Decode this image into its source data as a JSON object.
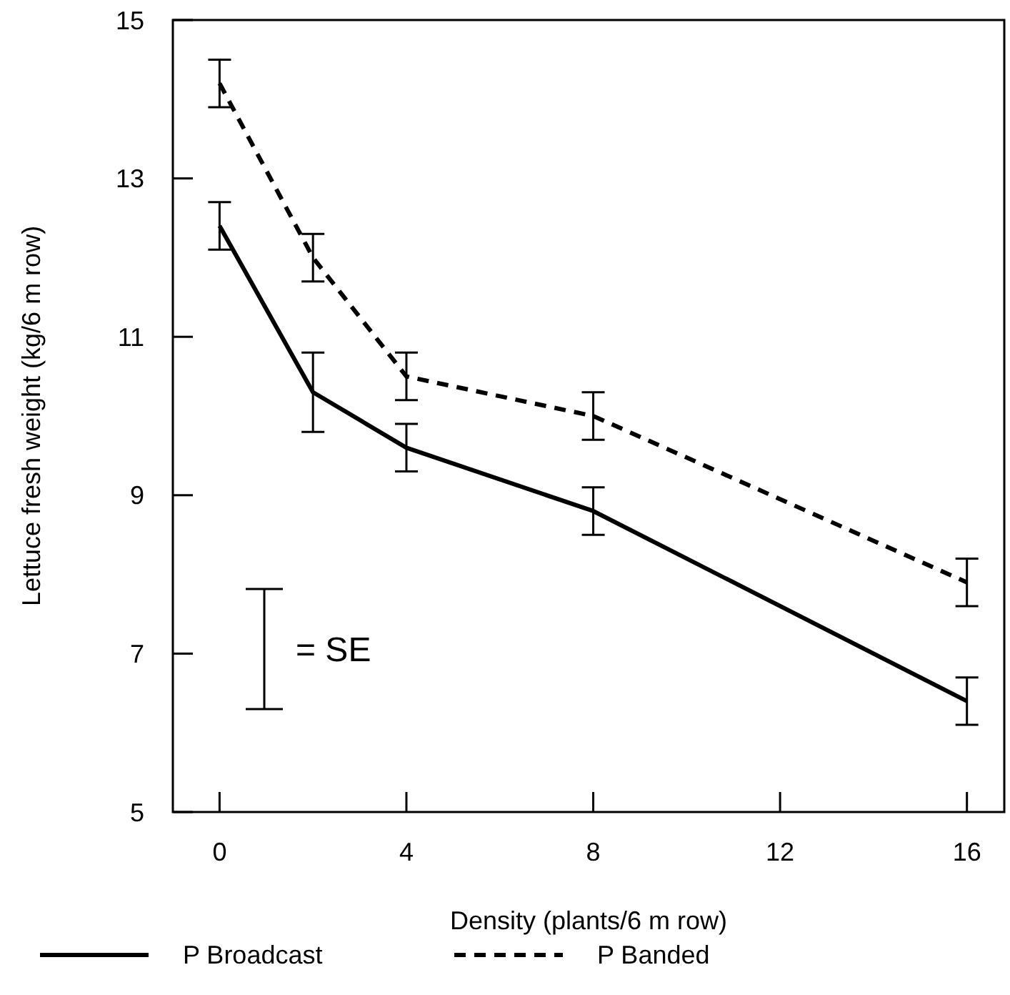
{
  "chart_data": {
    "type": "line",
    "xlabel": "Density (plants/6 m row)",
    "ylabel": "Lettuce fresh weight (kg/6 m row)",
    "x": [
      0,
      2,
      4,
      8,
      16
    ],
    "series": [
      {
        "name": "P Broadcast",
        "color": "#000000",
        "line_style": "solid",
        "values": [
          12.4,
          10.3,
          9.6,
          8.8,
          6.4
        ],
        "errors": [
          0.3,
          0.5,
          0.3,
          0.3,
          0.3
        ]
      },
      {
        "name": "P Banded",
        "color": "#000000",
        "line_style": "dashed",
        "values": [
          14.2,
          12.0,
          10.5,
          10.0,
          7.9
        ],
        "errors": [
          0.3,
          0.3,
          0.3,
          0.3,
          0.3
        ]
      }
    ],
    "annotations": [
      "= SE"
    ],
    "xlim": [
      -1,
      16.8
    ],
    "ylim": [
      5,
      15
    ],
    "xticks": [
      0,
      4,
      8,
      12,
      16
    ],
    "yticks": [
      5,
      7,
      9,
      11,
      13,
      15
    ],
    "grid": false,
    "legend": "bottom"
  }
}
